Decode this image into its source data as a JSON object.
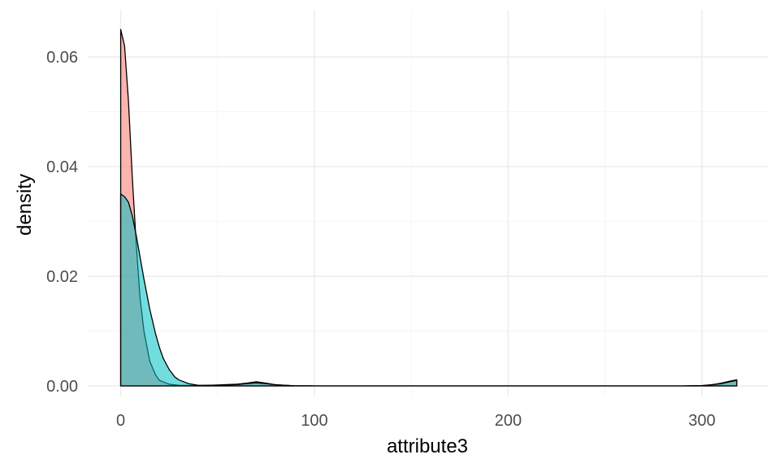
{
  "chart_data": {
    "type": "area",
    "title": "",
    "xlabel": "attribute3",
    "ylabel": "density",
    "xlim": [
      -17,
      334
    ],
    "ylim": [
      -0.00193,
      0.0686
    ],
    "x_ticks": [
      0,
      100,
      200,
      300
    ],
    "x_tick_labels": [
      "0",
      "100",
      "200",
      "300"
    ],
    "y_ticks": [
      0.0,
      0.02,
      0.04,
      0.06
    ],
    "y_tick_labels": [
      "0.00",
      "0.02",
      "0.04",
      "0.06"
    ],
    "grid": true,
    "legend": "none",
    "series": [
      {
        "color": "#F8766D",
        "fill_opacity": 0.55,
        "x": [
          0,
          2,
          4,
          6,
          8,
          10,
          12,
          15,
          18,
          20,
          25,
          30,
          40,
          50,
          60,
          65,
          70,
          75,
          80,
          90,
          100,
          150,
          200,
          250,
          290,
          300,
          305,
          310,
          315,
          318
        ],
        "y": [
          0.065,
          0.062,
          0.052,
          0.038,
          0.026,
          0.016,
          0.01,
          0.0045,
          0.002,
          0.001,
          0.0003,
          0.0001,
          3e-05,
          0.00015,
          0.0003,
          0.0005,
          0.00075,
          0.0005,
          0.0002,
          2e-05,
          0.0,
          0.0,
          0.0,
          0.0,
          0.0,
          5e-05,
          0.0002,
          0.0005,
          0.0009,
          0.0011
        ]
      },
      {
        "color": "#00BFC4",
        "fill_opacity": 0.55,
        "x": [
          0,
          2,
          4,
          6,
          8,
          10,
          12,
          15,
          18,
          20,
          22,
          25,
          28,
          30,
          35,
          40,
          50,
          60,
          65,
          70,
          75,
          80,
          90,
          100,
          150,
          200,
          250,
          290,
          300,
          305,
          310,
          315,
          318
        ],
        "y": [
          0.035,
          0.0345,
          0.0335,
          0.031,
          0.0275,
          0.0235,
          0.0195,
          0.014,
          0.0095,
          0.007,
          0.005,
          0.003,
          0.0016,
          0.0011,
          0.0004,
          0.0001,
          0.0001,
          0.00025,
          0.0004,
          0.00055,
          0.0004,
          0.0002,
          2e-05,
          0.0,
          0.0,
          0.0,
          0.0,
          0.0,
          5e-05,
          0.0002,
          0.0004,
          0.0008,
          0.001
        ]
      }
    ]
  }
}
